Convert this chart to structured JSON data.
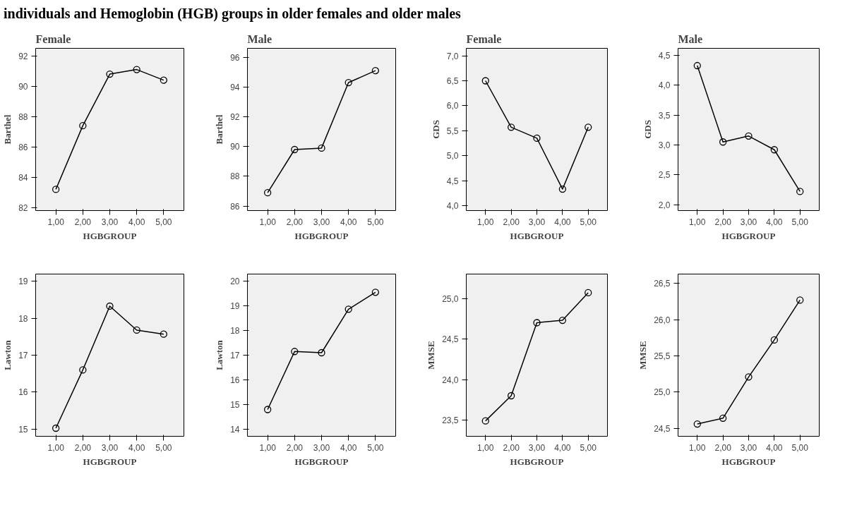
{
  "chart_data": [
    {
      "type": "line",
      "title": "Female",
      "annotations": [
        "individuals and Hemoglobin (HGB) groups in older females and older males"
      ],
      "xlabel": "HGBGROUP",
      "ylabel": "Barthel",
      "categories": [
        "1,00",
        "2,00",
        "3,00",
        "4,00",
        "5,00"
      ],
      "values": [
        83.2,
        87.4,
        90.8,
        91.1,
        90.4
      ],
      "color": "#000000",
      "marker": "circle",
      "ylim": [
        81.8,
        92.5
      ],
      "yticks": [
        82,
        84,
        86,
        88,
        90,
        92
      ]
    },
    {
      "type": "line",
      "title": "Male",
      "xlabel": "HGBGROUP",
      "ylabel": "Barthel",
      "categories": [
        "1,00",
        "2,00",
        "3,00",
        "4,00",
        "5,00"
      ],
      "values": [
        86.9,
        89.8,
        89.9,
        94.3,
        95.1
      ],
      "color": "#000000",
      "marker": "circle",
      "ylim": [
        85.7,
        96.6
      ],
      "yticks": [
        86,
        88,
        90,
        92,
        94,
        96
      ]
    },
    {
      "type": "line",
      "title": "Female",
      "xlabel": "HGBGROUP",
      "ylabel": "GDS",
      "categories": [
        "1,00",
        "2,00",
        "3,00",
        "4,00",
        "5,00"
      ],
      "values": [
        6.5,
        5.57,
        5.35,
        4.33,
        5.57
      ],
      "color": "#000000",
      "marker": "circle",
      "ylim": [
        3.9,
        7.15
      ],
      "yticks": [
        {
          "value": 4.0,
          "label": "4,0"
        },
        {
          "value": 4.5,
          "label": "4,5"
        },
        {
          "value": 5.0,
          "label": "5,0"
        },
        {
          "value": 5.5,
          "label": "5,5"
        },
        {
          "value": 6.0,
          "label": "6,0"
        },
        {
          "value": 6.5,
          "label": "6,5"
        },
        {
          "value": 7.0,
          "label": "7,0"
        }
      ]
    },
    {
      "type": "line",
      "title": "Male",
      "xlabel": "HGBGROUP",
      "ylabel": "GDS",
      "categories": [
        "1,00",
        "2,00",
        "3,00",
        "4,00",
        "5,00"
      ],
      "values": [
        4.33,
        3.05,
        3.15,
        2.92,
        2.22
      ],
      "color": "#000000",
      "marker": "circle",
      "ylim": [
        1.9,
        4.62
      ],
      "yticks": [
        {
          "value": 2.0,
          "label": "2,0"
        },
        {
          "value": 2.5,
          "label": "2,5"
        },
        {
          "value": 3.0,
          "label": "3,0"
        },
        {
          "value": 3.5,
          "label": "3,5"
        },
        {
          "value": 4.0,
          "label": "4,0"
        },
        {
          "value": 4.5,
          "label": "4,5"
        }
      ]
    },
    {
      "type": "line",
      "xlabel": "HGBGROUP",
      "ylabel": "Lawton",
      "categories": [
        "1,00",
        "2,00",
        "3,00",
        "4,00",
        "5,00"
      ],
      "values": [
        15.02,
        16.6,
        18.33,
        17.68,
        17.57
      ],
      "color": "#000000",
      "marker": "circle",
      "ylim": [
        14.8,
        19.2
      ],
      "yticks": [
        15,
        16,
        17,
        18,
        19
      ]
    },
    {
      "type": "line",
      "xlabel": "HGBGROUP",
      "ylabel": "Lawton",
      "categories": [
        "1,00",
        "2,00",
        "3,00",
        "4,00",
        "5,00"
      ],
      "values": [
        14.79,
        17.15,
        17.1,
        18.87,
        19.56
      ],
      "color": "#000000",
      "marker": "circle",
      "ylim": [
        13.7,
        20.3
      ],
      "yticks": [
        14,
        15,
        16,
        17,
        18,
        19,
        20
      ]
    },
    {
      "type": "line",
      "xlabel": "HGBGROUP",
      "ylabel": "MMSE",
      "categories": [
        "1,00",
        "2,00",
        "3,00",
        "4,00",
        "5,00"
      ],
      "values": [
        23.49,
        23.8,
        24.7,
        24.73,
        25.07
      ],
      "color": "#000000",
      "marker": "circle",
      "ylim": [
        23.3,
        25.3
      ],
      "yticks": [
        {
          "value": 23.5,
          "label": "23,5"
        },
        {
          "value": 24.0,
          "label": "24,0"
        },
        {
          "value": 24.5,
          "label": "24,5"
        },
        {
          "value": 25.0,
          "label": "25,0"
        }
      ]
    },
    {
      "type": "line",
      "xlabel": "HGBGROUP",
      "ylabel": "MMSE",
      "categories": [
        "1,00",
        "2,00",
        "3,00",
        "4,00",
        "5,00"
      ],
      "values": [
        24.56,
        24.64,
        25.21,
        25.72,
        26.27
      ],
      "color": "#000000",
      "marker": "circle",
      "ylim": [
        24.39,
        26.63
      ],
      "yticks": [
        {
          "value": 24.5,
          "label": "24,5"
        },
        {
          "value": 25.0,
          "label": "25,0"
        },
        {
          "value": 25.5,
          "label": "25,5"
        },
        {
          "value": 26.0,
          "label": "26,0"
        },
        {
          "value": 26.5,
          "label": "26,5"
        }
      ]
    }
  ]
}
